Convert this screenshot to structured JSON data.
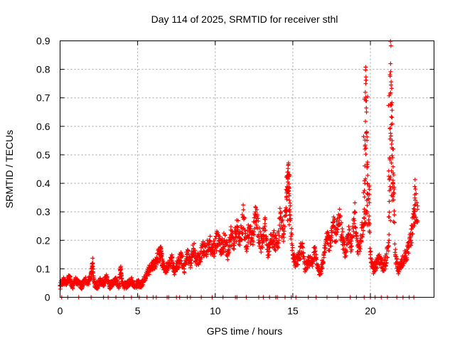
{
  "chart_data": {
    "type": "scatter",
    "title": "Day 114 of 2025, SRMTID for receiver sthl",
    "xlabel": "GPS time / hours",
    "ylabel": "SRMTID / TECUs",
    "xlim": [
      0,
      24.1
    ],
    "ylim": [
      0,
      0.9
    ],
    "x_ticks": [
      0,
      5,
      10,
      15,
      20
    ],
    "y_ticks": [
      0,
      0.1,
      0.2,
      0.3,
      0.4,
      0.5,
      0.6,
      0.7,
      0.8,
      0.9
    ],
    "x_tick_labels": [
      "0",
      "5",
      "10",
      "15",
      "20"
    ],
    "y_tick_labels": [
      "0",
      "0.1",
      "0.2",
      "0.3",
      "0.4",
      "0.5",
      "0.6",
      "0.7",
      "0.8",
      "0.9"
    ],
    "grid": true,
    "marker": "+",
    "color": "#ff0000",
    "series": [
      {
        "name": "SRMTID",
        "x": [
          0.0,
          0.2,
          0.4,
          0.6,
          0.8,
          1.0,
          1.2,
          1.4,
          1.6,
          1.8,
          2.0,
          2.1,
          2.2,
          2.4,
          2.6,
          2.8,
          3.0,
          3.2,
          3.4,
          3.6,
          3.8,
          3.9,
          4.0,
          4.2,
          4.4,
          4.6,
          4.8,
          5.0,
          5.2,
          5.4,
          5.6,
          5.8,
          6.0,
          6.2,
          6.4,
          6.5,
          6.6,
          6.8,
          7.0,
          7.2,
          7.4,
          7.6,
          7.8,
          8.0,
          8.2,
          8.4,
          8.6,
          8.8,
          9.0,
          9.2,
          9.4,
          9.6,
          9.8,
          10.0,
          10.2,
          10.4,
          10.6,
          10.8,
          11.0,
          11.2,
          11.4,
          11.6,
          11.8,
          12.0,
          12.2,
          12.4,
          12.6,
          12.8,
          13.0,
          13.2,
          13.4,
          13.6,
          13.8,
          14.0,
          14.2,
          14.4,
          14.6,
          14.7,
          14.8,
          15.0,
          15.2,
          15.4,
          15.6,
          15.8,
          16.0,
          16.2,
          16.4,
          16.6,
          16.8,
          17.0,
          17.2,
          17.4,
          17.6,
          17.8,
          18.0,
          18.2,
          18.4,
          18.6,
          18.8,
          19.0,
          19.2,
          19.4,
          19.6,
          19.7,
          19.8,
          20.0,
          20.2,
          20.4,
          20.6,
          20.8,
          21.0,
          21.2,
          21.3,
          21.4,
          21.6,
          21.8,
          22.0,
          22.2,
          22.4,
          22.6,
          22.8,
          22.9
        ],
        "y": [
          0.04,
          0.06,
          0.05,
          0.07,
          0.04,
          0.06,
          0.05,
          0.04,
          0.06,
          0.05,
          0.08,
          0.12,
          0.05,
          0.04,
          0.06,
          0.05,
          0.07,
          0.04,
          0.05,
          0.06,
          0.04,
          0.1,
          0.05,
          0.04,
          0.05,
          0.06,
          0.04,
          0.05,
          0.04,
          0.06,
          0.08,
          0.1,
          0.11,
          0.13,
          0.15,
          0.16,
          0.12,
          0.1,
          0.11,
          0.13,
          0.09,
          0.12,
          0.14,
          0.1,
          0.15,
          0.12,
          0.17,
          0.13,
          0.14,
          0.18,
          0.15,
          0.2,
          0.16,
          0.18,
          0.22,
          0.17,
          0.2,
          0.16,
          0.22,
          0.19,
          0.25,
          0.2,
          0.28,
          0.18,
          0.24,
          0.2,
          0.3,
          0.22,
          0.18,
          0.25,
          0.16,
          0.22,
          0.2,
          0.18,
          0.28,
          0.22,
          0.35,
          0.44,
          0.3,
          0.15,
          0.12,
          0.14,
          0.18,
          0.1,
          0.13,
          0.12,
          0.16,
          0.1,
          0.09,
          0.14,
          0.2,
          0.18,
          0.25,
          0.22,
          0.28,
          0.2,
          0.16,
          0.22,
          0.18,
          0.3,
          0.16,
          0.2,
          0.3,
          0.75,
          0.4,
          0.15,
          0.1,
          0.12,
          0.14,
          0.1,
          0.13,
          0.2,
          0.82,
          0.55,
          0.15,
          0.1,
          0.12,
          0.14,
          0.16,
          0.2,
          0.28,
          0.38
        ],
        "zero_x": [
          0.1,
          0.5,
          1.2,
          2.0,
          2.8,
          3.1,
          3.6,
          4.1,
          4.6,
          5.1,
          5.6,
          6.0,
          6.2,
          6.9,
          7.0,
          7.5,
          7.7,
          8.2,
          8.4,
          9.1,
          9.8,
          10.5,
          11.3,
          11.4,
          12.0,
          12.8,
          13.1,
          13.5,
          13.9,
          14.0,
          14.5,
          14.9,
          15.2,
          16.0,
          16.5,
          17.2,
          17.9,
          18.7,
          19.1,
          19.6,
          20.0,
          20.3,
          20.7,
          21.1,
          21.7,
          22.1,
          22.5,
          22.8
        ]
      }
    ]
  }
}
